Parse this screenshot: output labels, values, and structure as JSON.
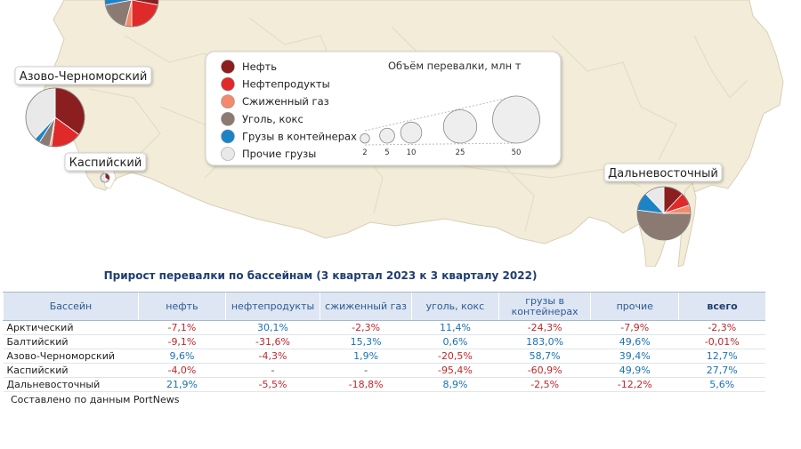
{
  "colors": {
    "oil": "#8b1e1e",
    "oil_products": "#e02a2a",
    "lng": "#f4896b",
    "coal": "#8a7a72",
    "containers": "#1c84c6",
    "other": "#e9e9ea",
    "land": "#f2ecd9",
    "positive": "#1a72b5",
    "negative": "#c0282b",
    "header_bg": "#dde6f2"
  },
  "map": {
    "regions": [
      {
        "id": "azov-black-sea",
        "label": "Азово-Черноморский"
      },
      {
        "id": "caspian",
        "label": "Каспийский"
      },
      {
        "id": "far-east",
        "label": "Дальневосточный"
      }
    ],
    "legend": {
      "items": [
        {
          "label": "Нефть",
          "color_key": "oil"
        },
        {
          "label": "Нефтепродукты",
          "color_key": "oil_products"
        },
        {
          "label": "Сжиженный газ",
          "color_key": "lng"
        },
        {
          "label": "Уголь, кокс",
          "color_key": "coal"
        },
        {
          "label": "Грузы в контейнерах",
          "color_key": "containers"
        },
        {
          "label": "Прочие грузы",
          "color_key": "other"
        }
      ],
      "size_title": "Объём перевалки, млн т",
      "size_ticks": [
        2,
        5,
        10,
        25,
        50
      ]
    }
  },
  "table": {
    "title": "Прирост перевалки по бассейнам (3 квартал 2023 к 3 кварталу 2022)",
    "headers": [
      "Бассейн",
      "нефть",
      "нефтепродукты",
      "сжиженный газ",
      "уголь, кокс",
      "грузы в контейнерах",
      "прочие",
      "всего"
    ],
    "rows": [
      {
        "basin": "Арктический",
        "values": [
          "-7,1%",
          "30,1%",
          "-2,3%",
          "11,4%",
          "-24,3%",
          "-7,9%",
          "-2,3%"
        ]
      },
      {
        "basin": "Балтийский",
        "values": [
          "-9,1%",
          "-31,6%",
          "15,3%",
          "0,6%",
          "183,0%",
          "49,6%",
          "-0,01%"
        ]
      },
      {
        "basin": "Азово-Черноморский",
        "values": [
          "9,6%",
          "-4,3%",
          "1,9%",
          "-20,5%",
          "58,7%",
          "39,4%",
          "12,7%"
        ]
      },
      {
        "basin": "Каспийский",
        "values": [
          "-4,0%",
          "-",
          "-",
          "-95,4%",
          "-60,9%",
          "49,9%",
          "27,7%"
        ]
      },
      {
        "basin": "Дальневосточный",
        "values": [
          "21,9%",
          "-5,5%",
          "-18,8%",
          "8,9%",
          "-2,5%",
          "-12,2%",
          "5,6%"
        ]
      }
    ]
  },
  "source_note": "Составлено по данным PortNews"
}
